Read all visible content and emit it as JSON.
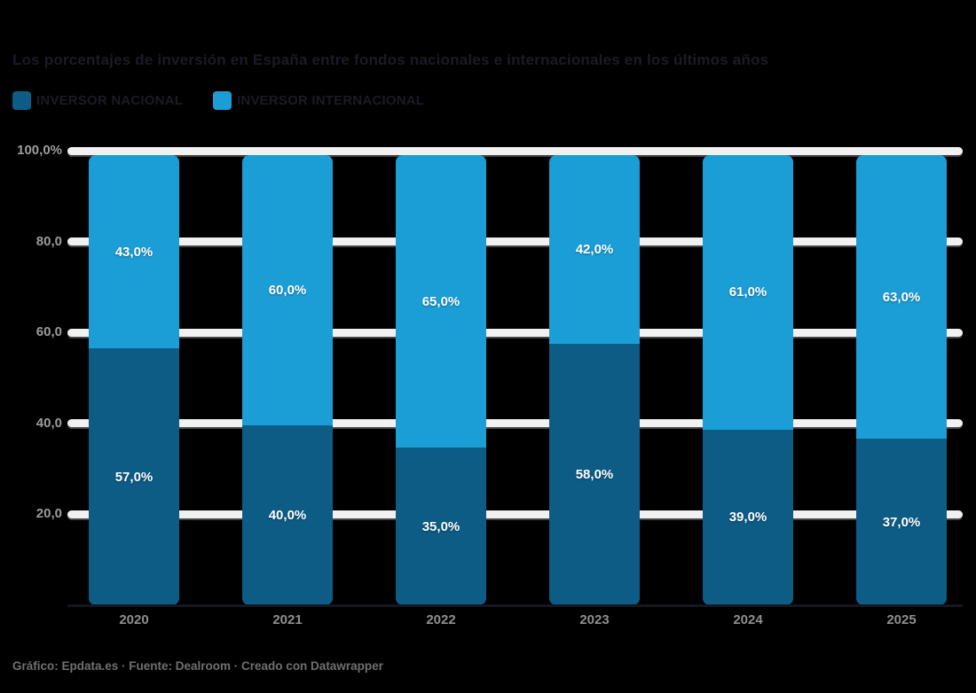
{
  "header": {
    "title": "Los porcentajes de inversión en España entre fondos nacionales e internacionales en los últimos años"
  },
  "legend": {
    "items": [
      {
        "label": "INVERSOR NACIONAL",
        "color": "#0d5c86"
      },
      {
        "label": "INVERSOR INTERNACIONAL",
        "color": "#1b9ed6"
      }
    ]
  },
  "footer": {
    "text": "Gráfico: Epdata.es · Fuente: Dealroom · Creado con Datawrapper"
  },
  "colors": {
    "background": "#000000",
    "nacional": "#0d5c86",
    "internacional": "#1b9ed6",
    "gridline": "#f1f1f1",
    "axis_label": "#9c9c9c",
    "data_label": "#ffffff"
  },
  "chart_data": {
    "type": "bar",
    "stacked": true,
    "title": "Los porcentajes de inversión en España entre fondos nacionales e internacionales en los últimos años",
    "categories": [
      "2020",
      "2021",
      "2022",
      "2023",
      "2024",
      "2025"
    ],
    "series": [
      {
        "name": "INVERSOR NACIONAL",
        "color": "#0d5c86",
        "values": [
          57,
          40,
          35,
          58,
          39,
          37
        ],
        "labels": [
          "57,0%",
          "40,0%",
          "35,0%",
          "58,0%",
          "39,0%",
          "37,0%"
        ]
      },
      {
        "name": "INVERSOR INTERNACIONAL",
        "color": "#1b9ed6",
        "values": [
          43,
          60,
          65,
          42,
          61,
          63
        ],
        "labels": [
          "43,0%",
          "60,0%",
          "65,0%",
          "42,0%",
          "61,0%",
          "63,0%"
        ]
      }
    ],
    "xlabel": "",
    "ylabel": "",
    "ylim": [
      0,
      100
    ],
    "yticks": [
      {
        "value": 100,
        "label": "100,0%"
      },
      {
        "value": 80,
        "label": "80,0"
      },
      {
        "value": 60,
        "label": "60,0"
      },
      {
        "value": 40,
        "label": "40,0"
      },
      {
        "value": 20,
        "label": "20,0"
      }
    ],
    "grid": true,
    "legend_position": "top"
  }
}
